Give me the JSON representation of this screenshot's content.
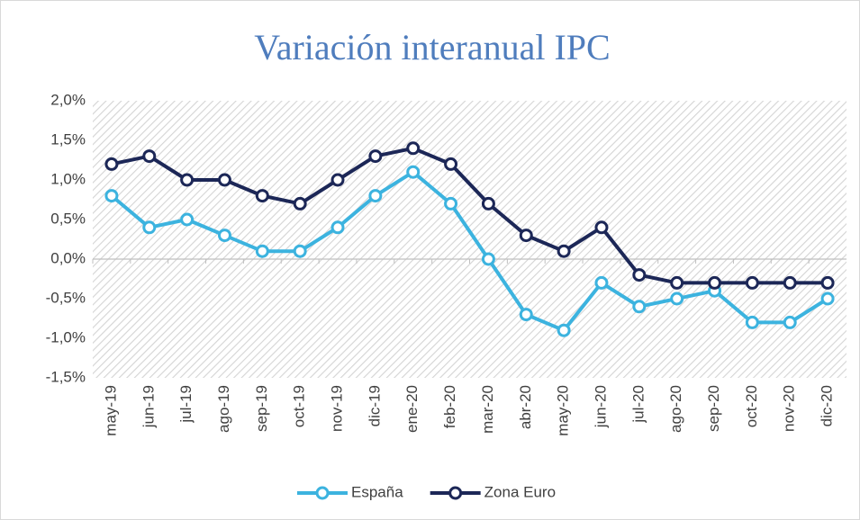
{
  "chart_data": {
    "type": "line",
    "title": "Variación interanual IPC",
    "categories": [
      "may-19",
      "jun-19",
      "jul-19",
      "ago-19",
      "sep-19",
      "oct-19",
      "nov-19",
      "dic-19",
      "ene-20",
      "feb-20",
      "mar-20",
      "abr-20",
      "may-20",
      "jun-20",
      "jul-20",
      "ago-20",
      "sep-20",
      "oct-20",
      "nov-20",
      "dic-20"
    ],
    "series": [
      {
        "name": "España",
        "color": "#3cb3df",
        "values": [
          0.8,
          0.4,
          0.5,
          0.3,
          0.1,
          0.1,
          0.4,
          0.8,
          1.1,
          0.7,
          0.0,
          -0.7,
          -0.9,
          -0.3,
          -0.6,
          -0.5,
          -0.4,
          -0.8,
          -0.8,
          -0.5
        ]
      },
      {
        "name": "Zona Euro",
        "color": "#1c2757",
        "values": [
          1.2,
          1.3,
          1.0,
          1.0,
          0.8,
          0.7,
          1.0,
          1.3,
          1.4,
          1.2,
          0.7,
          0.3,
          0.1,
          0.4,
          -0.2,
          -0.3,
          -0.3,
          -0.3,
          -0.3,
          -0.3
        ]
      }
    ],
    "ylim": [
      -1.5,
      2.0
    ],
    "yticks": [
      {
        "value": -1.5,
        "label": "-1,5%"
      },
      {
        "value": -1.0,
        "label": "-1,0%"
      },
      {
        "value": -0.5,
        "label": "-0,5%"
      },
      {
        "value": 0.0,
        "label": "0,0%"
      },
      {
        "value": 0.5,
        "label": "0,5%"
      },
      {
        "value": 1.0,
        "label": "1,0%"
      },
      {
        "value": 1.5,
        "label": "1,5%"
      },
      {
        "value": 2.0,
        "label": "2,0%"
      }
    ],
    "legend": "bottom"
  }
}
